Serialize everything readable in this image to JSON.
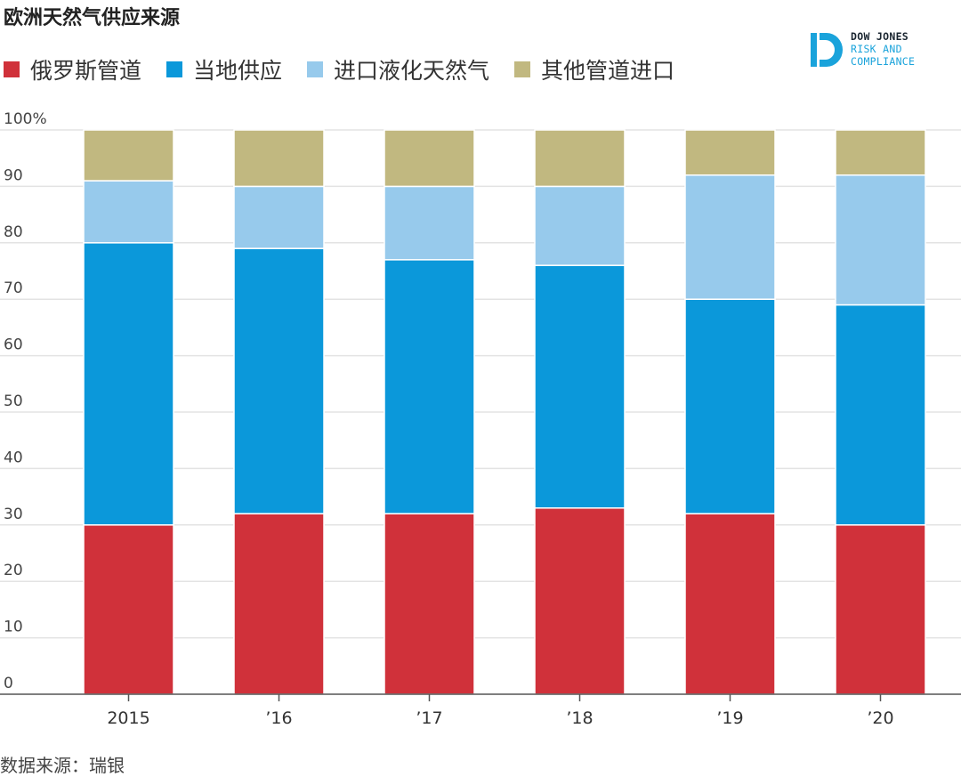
{
  "title": "欧洲天然气供应来源",
  "source": "数据来源：瑞银",
  "brand": {
    "line1": "DOW JONES",
    "line2": "RISK AND",
    "line3": "COMPLIANCE",
    "color": "#1aa3db",
    "icon": "dow-jones-d-logo"
  },
  "chart_data": {
    "type": "bar",
    "stacked": true,
    "categories": [
      "2015",
      "’16",
      "’17",
      "’18",
      "’19",
      "’20"
    ],
    "ylim": [
      0,
      100
    ],
    "yticks": [
      0,
      10,
      20,
      30,
      40,
      50,
      60,
      70,
      80,
      90,
      100
    ],
    "ytick_labels": [
      "0",
      "10",
      "20",
      "30",
      "40",
      "50",
      "60",
      "70",
      "80",
      "90",
      "100%"
    ],
    "grid": true,
    "legend_position": "top-left",
    "series": [
      {
        "name": "俄罗斯管道",
        "color": "#d0313a",
        "values": [
          30,
          32,
          32,
          33,
          32,
          30
        ]
      },
      {
        "name": "当地供应",
        "color": "#0b98da",
        "values": [
          50,
          47,
          45,
          43,
          38,
          39
        ]
      },
      {
        "name": "进口液化天然气",
        "color": "#97caec",
        "values": [
          11,
          11,
          13,
          14,
          22,
          23
        ]
      },
      {
        "name": "其他管道进口",
        "color": "#c1b880",
        "values": [
          9,
          10,
          10,
          10,
          8,
          8
        ]
      }
    ]
  }
}
